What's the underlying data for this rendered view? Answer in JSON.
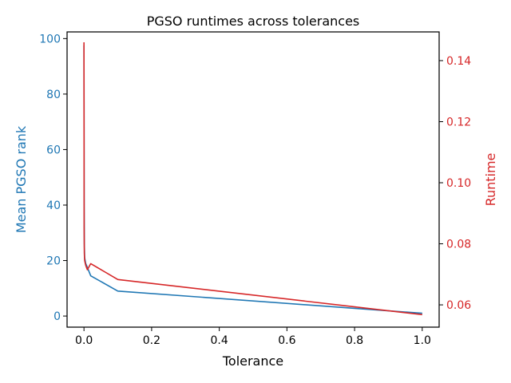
{
  "chart_data": {
    "type": "line",
    "title": "PGSO runtimes across tolerances",
    "xlabel": "Tolerance",
    "xlim": [
      -0.05,
      1.05
    ],
    "xticks": [
      0.0,
      0.2,
      0.4,
      0.6,
      0.8,
      1.0
    ],
    "xtick_labels": [
      "0.0",
      "0.2",
      "0.4",
      "0.6",
      "0.8",
      "1.0"
    ],
    "grid": false,
    "legend": "none",
    "axes": {
      "left": {
        "label": "Mean PGSO rank",
        "color": "#1f77b4",
        "ylim": [
          -4,
          102.4
        ],
        "ticks": [
          0,
          20,
          40,
          60,
          80,
          100
        ],
        "tick_labels": [
          "0",
          "20",
          "40",
          "60",
          "80",
          "100"
        ]
      },
      "right": {
        "label": "Runtime",
        "color": "#d62728",
        "ylim": [
          0.0527,
          0.1494
        ],
        "ticks": [
          0.06,
          0.08,
          0.1,
          0.12,
          0.14
        ],
        "tick_labels": [
          "0.06",
          "0.08",
          "0.10",
          "0.12",
          "0.14"
        ]
      }
    },
    "series": [
      {
        "axis": "left",
        "color": "#1f77b4",
        "x": [
          0.0,
          0.0005,
          0.001,
          0.002,
          0.005,
          0.01,
          0.02,
          0.1,
          1.0
        ],
        "y": [
          97.5,
          40,
          26,
          21,
          19,
          17.5,
          14.5,
          9.0,
          1.0
        ]
      },
      {
        "axis": "right",
        "color": "#d62728",
        "x": [
          0.0,
          0.0005,
          0.001,
          0.002,
          0.005,
          0.01,
          0.02,
          0.1,
          1.0
        ],
        "y": [
          0.146,
          0.085,
          0.077,
          0.0745,
          0.073,
          0.0715,
          0.0735,
          0.0683,
          0.0568
        ]
      }
    ]
  }
}
